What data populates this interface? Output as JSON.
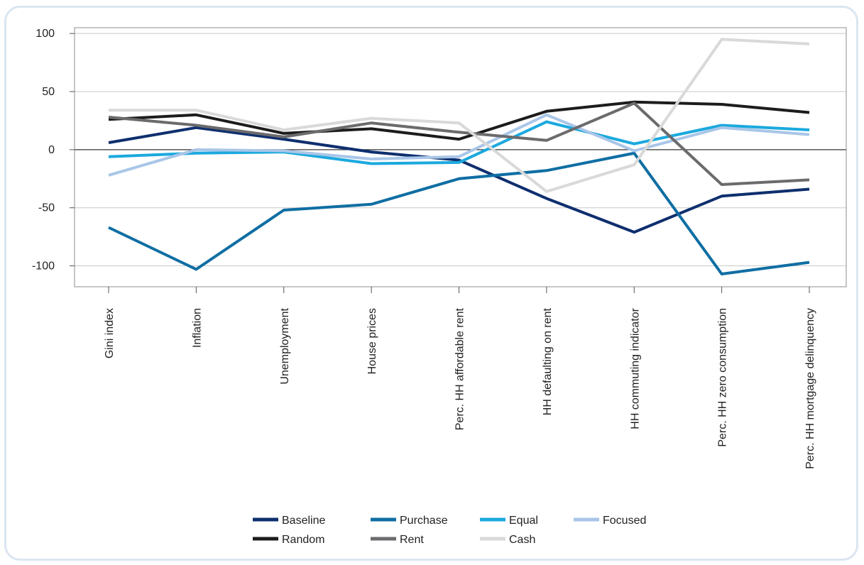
{
  "chart_data": {
    "type": "line",
    "categories": [
      "Gini index",
      "Inflation",
      "Unemployment",
      "House prices",
      "Perc. HH affordable rent",
      "HH defaulting on rent",
      "HH commuting indicator",
      "Perc. HH zero consumption",
      "Perc. HH mortgage delinquency"
    ],
    "ylim": [
      -118,
      105
    ],
    "yticks": [
      "100",
      "50",
      "0",
      "-50",
      "-100"
    ],
    "ytick_values": [
      100,
      50,
      0,
      -50,
      -100
    ],
    "grid": true,
    "legend_position": "bottom",
    "series": [
      {
        "name": "Baseline",
        "color": "#0e2f6e",
        "values": [
          6,
          19,
          9,
          -2,
          -9,
          -42,
          -71,
          -40,
          -34
        ]
      },
      {
        "name": "Purchase",
        "color": "#0f6ea3",
        "values": [
          -67,
          -103,
          -52,
          -47,
          -25,
          -18,
          -3,
          -107,
          -97
        ]
      },
      {
        "name": "Equal",
        "color": "#1ba9de",
        "values": [
          -6,
          -3,
          -2,
          -12,
          -11,
          24,
          5,
          21,
          17
        ]
      },
      {
        "name": "Focused",
        "color": "#a9c6e8",
        "values": [
          -22,
          0,
          -1,
          -8,
          -6,
          30,
          -1,
          19,
          13
        ]
      },
      {
        "name": "Random",
        "color": "#1c1c1c",
        "values": [
          26,
          30,
          14,
          18,
          9,
          33,
          41,
          39,
          32
        ]
      },
      {
        "name": "Rent",
        "color": "#6b6b6d",
        "values": [
          28,
          21,
          11,
          23,
          15,
          8,
          40,
          -30,
          -26
        ]
      },
      {
        "name": "Cash",
        "color": "#d9d9d9",
        "values": [
          34,
          34,
          17,
          27,
          23,
          -36,
          -13,
          95,
          91
        ]
      }
    ]
  }
}
